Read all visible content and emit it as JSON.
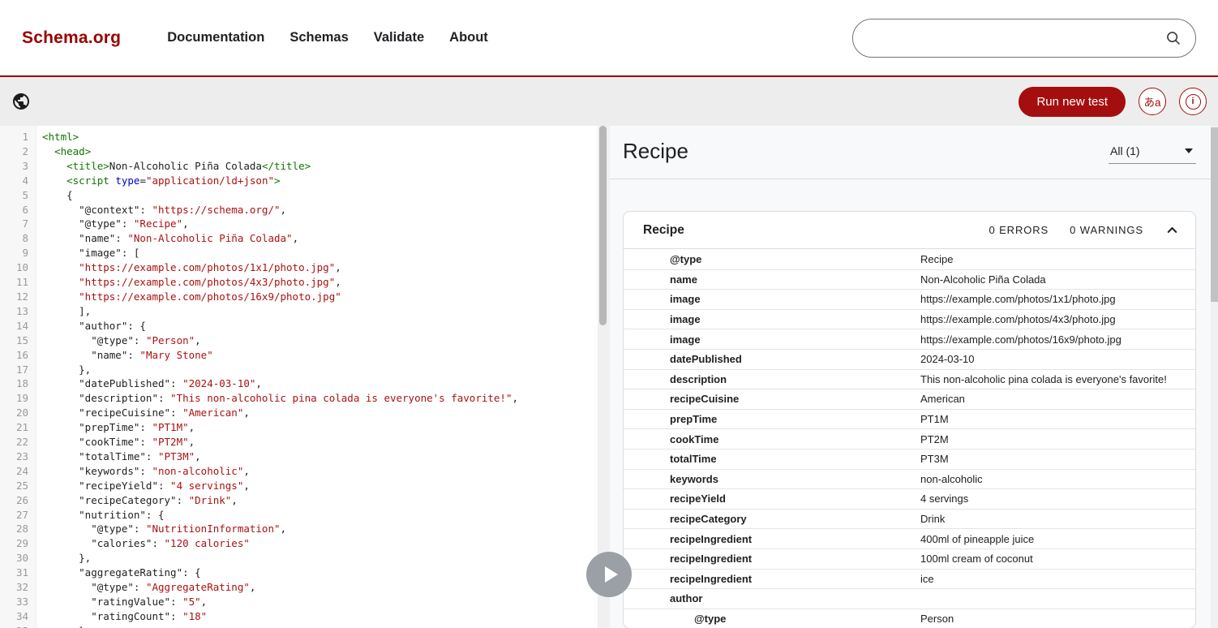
{
  "header": {
    "logo": "Schema.org",
    "nav": [
      "Documentation",
      "Schemas",
      "Validate",
      "About"
    ],
    "search_placeholder": ""
  },
  "toolbar": {
    "run_button": "Run new test",
    "translate_icon_label": "あa",
    "info_icon_label": "i"
  },
  "editor": {
    "lines": [
      {
        "n": 1,
        "s": [
          [
            "g",
            "<html>"
          ]
        ]
      },
      {
        "n": 2,
        "s": [
          [
            "k",
            "  "
          ],
          [
            "g",
            "<head>"
          ]
        ]
      },
      {
        "n": 3,
        "s": [
          [
            "k",
            "    "
          ],
          [
            "g",
            "<title>"
          ],
          [
            "k",
            "Non-Alcoholic Piña Colada"
          ],
          [
            "g",
            "</title>"
          ]
        ]
      },
      {
        "n": 4,
        "s": [
          [
            "k",
            "    "
          ],
          [
            "g",
            "<script"
          ],
          [
            "k",
            " "
          ],
          [
            "b",
            "type"
          ],
          [
            "k",
            "="
          ],
          [
            "r",
            "\"application/ld+json\""
          ],
          [
            "g",
            ">"
          ]
        ]
      },
      {
        "n": 5,
        "s": [
          [
            "k",
            "    {"
          ]
        ]
      },
      {
        "n": 6,
        "s": [
          [
            "k",
            "      \"@context\": "
          ],
          [
            "r",
            "\"https://schema.org/\""
          ],
          [
            "k",
            ","
          ]
        ]
      },
      {
        "n": 7,
        "s": [
          [
            "k",
            "      \"@type\": "
          ],
          [
            "r",
            "\"Recipe\""
          ],
          [
            "k",
            ","
          ]
        ]
      },
      {
        "n": 8,
        "s": [
          [
            "k",
            "      \"name\": "
          ],
          [
            "r",
            "\"Non-Alcoholic Piña Colada\""
          ],
          [
            "k",
            ","
          ]
        ]
      },
      {
        "n": 9,
        "s": [
          [
            "k",
            "      \"image\": ["
          ]
        ]
      },
      {
        "n": 10,
        "s": [
          [
            "k",
            "      "
          ],
          [
            "r",
            "\"https://example.com/photos/1x1/photo.jpg\""
          ],
          [
            "k",
            ","
          ]
        ]
      },
      {
        "n": 11,
        "s": [
          [
            "k",
            "      "
          ],
          [
            "r",
            "\"https://example.com/photos/4x3/photo.jpg\""
          ],
          [
            "k",
            ","
          ]
        ]
      },
      {
        "n": 12,
        "s": [
          [
            "k",
            "      "
          ],
          [
            "r",
            "\"https://example.com/photos/16x9/photo.jpg\""
          ]
        ]
      },
      {
        "n": 13,
        "s": [
          [
            "k",
            "      ],"
          ]
        ]
      },
      {
        "n": 14,
        "s": [
          [
            "k",
            "      \"author\": {"
          ]
        ]
      },
      {
        "n": 15,
        "s": [
          [
            "k",
            "        \"@type\": "
          ],
          [
            "r",
            "\"Person\""
          ],
          [
            "k",
            ","
          ]
        ]
      },
      {
        "n": 16,
        "s": [
          [
            "k",
            "        \"name\": "
          ],
          [
            "r",
            "\"Mary Stone\""
          ]
        ]
      },
      {
        "n": 17,
        "s": [
          [
            "k",
            "      },"
          ]
        ]
      },
      {
        "n": 18,
        "s": [
          [
            "k",
            "      \"datePublished\": "
          ],
          [
            "r",
            "\"2024-03-10\""
          ],
          [
            "k",
            ","
          ]
        ]
      },
      {
        "n": 19,
        "s": [
          [
            "k",
            "      \"description\": "
          ],
          [
            "r",
            "\"This non-alcoholic pina colada is everyone's favorite!\""
          ],
          [
            "k",
            ","
          ]
        ]
      },
      {
        "n": 20,
        "s": [
          [
            "k",
            "      \"recipeCuisine\": "
          ],
          [
            "r",
            "\"American\""
          ],
          [
            "k",
            ","
          ]
        ]
      },
      {
        "n": 21,
        "s": [
          [
            "k",
            "      \"prepTime\": "
          ],
          [
            "r",
            "\"PT1M\""
          ],
          [
            "k",
            ","
          ]
        ]
      },
      {
        "n": 22,
        "s": [
          [
            "k",
            "      \"cookTime\": "
          ],
          [
            "r",
            "\"PT2M\""
          ],
          [
            "k",
            ","
          ]
        ]
      },
      {
        "n": 23,
        "s": [
          [
            "k",
            "      \"totalTime\": "
          ],
          [
            "r",
            "\"PT3M\""
          ],
          [
            "k",
            ","
          ]
        ]
      },
      {
        "n": 24,
        "s": [
          [
            "k",
            "      \"keywords\": "
          ],
          [
            "r",
            "\"non-alcoholic\""
          ],
          [
            "k",
            ","
          ]
        ]
      },
      {
        "n": 25,
        "s": [
          [
            "k",
            "      \"recipeYield\": "
          ],
          [
            "r",
            "\"4 servings\""
          ],
          [
            "k",
            ","
          ]
        ]
      },
      {
        "n": 26,
        "s": [
          [
            "k",
            "      \"recipeCategory\": "
          ],
          [
            "r",
            "\"Drink\""
          ],
          [
            "k",
            ","
          ]
        ]
      },
      {
        "n": 27,
        "s": [
          [
            "k",
            "      \"nutrition\": {"
          ]
        ]
      },
      {
        "n": 28,
        "s": [
          [
            "k",
            "        \"@type\": "
          ],
          [
            "r",
            "\"NutritionInformation\""
          ],
          [
            "k",
            ","
          ]
        ]
      },
      {
        "n": 29,
        "s": [
          [
            "k",
            "        \"calories\": "
          ],
          [
            "r",
            "\"120 calories\""
          ]
        ]
      },
      {
        "n": 30,
        "s": [
          [
            "k",
            "      },"
          ]
        ]
      },
      {
        "n": 31,
        "s": [
          [
            "k",
            "      \"aggregateRating\": {"
          ]
        ]
      },
      {
        "n": 32,
        "s": [
          [
            "k",
            "        \"@type\": "
          ],
          [
            "r",
            "\"AggregateRating\""
          ],
          [
            "k",
            ","
          ]
        ]
      },
      {
        "n": 33,
        "s": [
          [
            "k",
            "        \"ratingValue\": "
          ],
          [
            "r",
            "\"5\""
          ],
          [
            "k",
            ","
          ]
        ]
      },
      {
        "n": 34,
        "s": [
          [
            "k",
            "        \"ratingCount\": "
          ],
          [
            "r",
            "\"18\""
          ]
        ]
      },
      {
        "n": 35,
        "s": [
          [
            "k",
            "      }"
          ]
        ]
      }
    ]
  },
  "results": {
    "title": "Recipe",
    "filter": "All (1)",
    "card": {
      "title": "Recipe",
      "errors": "0 ERRORS",
      "warnings": "0 WARNINGS",
      "rows": [
        {
          "name": "@type",
          "value": "Recipe",
          "indent": 1
        },
        {
          "name": "name",
          "value": "Non-Alcoholic Piña Colada",
          "indent": 1
        },
        {
          "name": "image",
          "value": "https://example.com/photos/1x1/photo.jpg",
          "indent": 1
        },
        {
          "name": "image",
          "value": "https://example.com/photos/4x3/photo.jpg",
          "indent": 1
        },
        {
          "name": "image",
          "value": "https://example.com/photos/16x9/photo.jpg",
          "indent": 1
        },
        {
          "name": "datePublished",
          "value": "2024-03-10",
          "indent": 1
        },
        {
          "name": "description",
          "value": "This non-alcoholic pina colada is everyone's favorite!",
          "indent": 1
        },
        {
          "name": "recipeCuisine",
          "value": "American",
          "indent": 1
        },
        {
          "name": "prepTime",
          "value": "PT1M",
          "indent": 1
        },
        {
          "name": "cookTime",
          "value": "PT2M",
          "indent": 1
        },
        {
          "name": "totalTime",
          "value": "PT3M",
          "indent": 1
        },
        {
          "name": "keywords",
          "value": "non-alcoholic",
          "indent": 1
        },
        {
          "name": "recipeYield",
          "value": "4 servings",
          "indent": 1
        },
        {
          "name": "recipeCategory",
          "value": "Drink",
          "indent": 1
        },
        {
          "name": "recipeIngredient",
          "value": "400ml of pineapple juice",
          "indent": 1
        },
        {
          "name": "recipeIngredient",
          "value": "100ml cream of coconut",
          "indent": 1
        },
        {
          "name": "recipeIngredient",
          "value": "ice",
          "indent": 1
        },
        {
          "name": "author",
          "value": "",
          "indent": 1
        },
        {
          "name": "@type",
          "value": "Person",
          "indent": 2
        }
      ]
    }
  }
}
